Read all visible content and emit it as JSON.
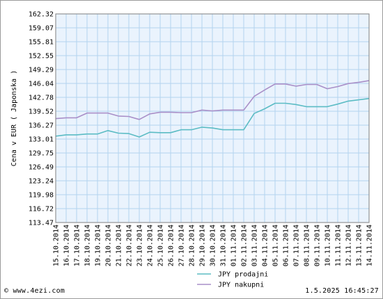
{
  "chart_data": {
    "type": "line",
    "title": "",
    "xlabel": "",
    "ylabel": "Cena v EUR ( Japonska )",
    "ylim": [
      113.47,
      162.32
    ],
    "yticks": [
      "113.47",
      "116.72",
      "119.98",
      "123.24",
      "126.49",
      "129.75",
      "133.01",
      "136.27",
      "139.52",
      "142.78",
      "146.04",
      "149.29",
      "152.55",
      "155.81",
      "159.07",
      "162.32"
    ],
    "grid": true,
    "legend_position": "bottom-center",
    "x": [
      "15.10.2014",
      "16.10.2014",
      "17.10.2014",
      "18.10.2014",
      "19.10.2014",
      "20.10.2014",
      "21.10.2014",
      "22.10.2014",
      "23.10.2014",
      "24.10.2014",
      "25.10.2014",
      "26.10.2014",
      "27.10.2014",
      "28.10.2014",
      "29.10.2014",
      "30.10.2014",
      "31.10.2014",
      "01.11.2014",
      "02.11.2014",
      "03.11.2014",
      "04.11.2014",
      "05.11.2014",
      "06.11.2014",
      "07.11.2014",
      "08.11.2014",
      "09.11.2014",
      "10.11.2014",
      "11.11.2014",
      "12.11.2014",
      "13.11.2014",
      "14.11.2014"
    ],
    "series": [
      {
        "name": "JPY prodajni",
        "color": "#5bbcc4",
        "values": [
          133.7,
          134.0,
          134.0,
          134.2,
          134.2,
          135.0,
          134.4,
          134.3,
          133.5,
          134.6,
          134.5,
          134.5,
          135.2,
          135.2,
          135.8,
          135.6,
          135.2,
          135.2,
          135.2,
          139.0,
          140.1,
          141.4,
          141.4,
          141.1,
          140.6,
          140.6,
          140.6,
          141.2,
          141.9,
          142.2,
          142.5
        ]
      },
      {
        "name": "JPY nakupni",
        "color": "#a98fc8",
        "values": [
          137.8,
          138.0,
          138.0,
          139.1,
          139.1,
          139.1,
          138.4,
          138.3,
          137.6,
          138.9,
          139.3,
          139.3,
          139.2,
          139.2,
          139.8,
          139.6,
          139.8,
          139.8,
          139.8,
          143.0,
          144.5,
          145.9,
          145.9,
          145.4,
          145.8,
          145.8,
          144.8,
          145.3,
          146.0,
          146.3,
          146.7
        ]
      }
    ]
  },
  "footer": {
    "copyright": "© www.4ezi.com",
    "timestamp": "1.5.2025 16:45:27"
  }
}
